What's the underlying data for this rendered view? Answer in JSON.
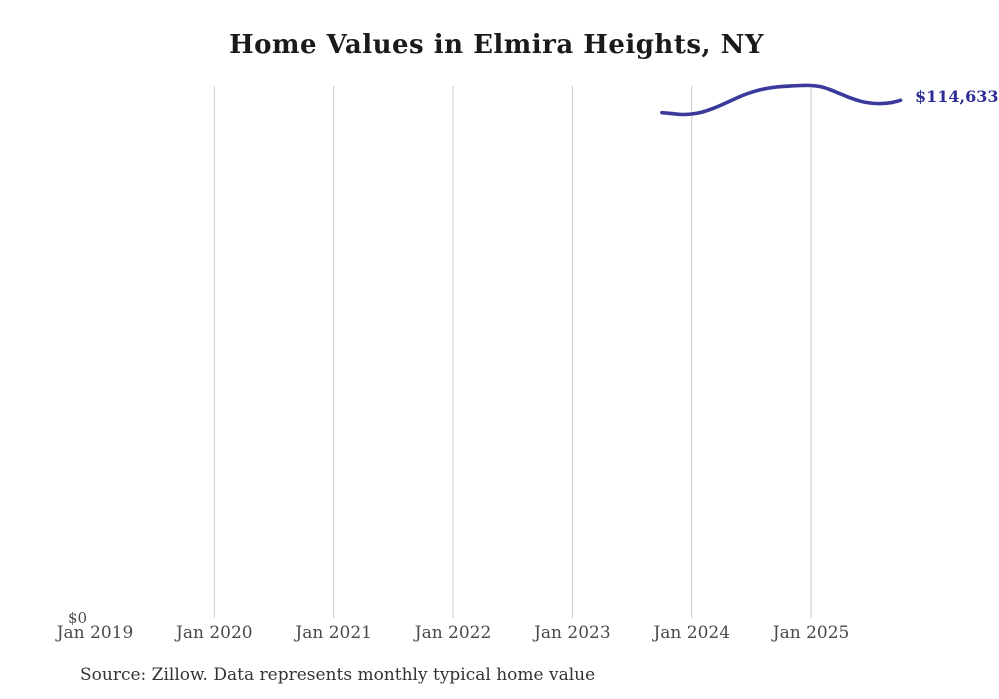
{
  "page": {
    "title": "Home Values in Elmira Heights, NY",
    "zero_label": "$0",
    "end_value_label": "$114,633",
    "source_note": "Source: Zillow. Data represents monthly typical home value"
  },
  "colors": {
    "line": "#3a3a9c",
    "end_label": "#2e2e96",
    "gridline": "#c9c9c9",
    "axis_text": "#4a4a4a",
    "title_text": "#1a1a1a",
    "source_text": "#333333"
  },
  "chart_data": {
    "type": "line",
    "title": "Home Values in Elmira Heights, NY",
    "xlabel": "",
    "ylabel": "",
    "x_ticks": [
      "Jan 2019",
      "Jan 2020",
      "Jan 2021",
      "Jan 2022",
      "Jan 2023",
      "Jan 2024",
      "Jan 2025"
    ],
    "gridlines": "vertical-at-yearly-ticks-except-first",
    "ylim": [
      0,
      118000
    ],
    "y_zero_label": "$0",
    "end_label": "$114,633",
    "legend": "none",
    "source": "Source: Zillow. Data represents monthly typical home value",
    "series": [
      {
        "name": "Monthly typical home value",
        "months": [
          "Oct 2023",
          "Nov 2023",
          "Dec 2023",
          "Jan 2024",
          "Feb 2024",
          "Mar 2024",
          "Apr 2024",
          "May 2024",
          "Jun 2024",
          "Jul 2024",
          "Aug 2024",
          "Sep 2024",
          "Oct 2024",
          "Nov 2024",
          "Dec 2024",
          "Jan 2025",
          "Feb 2025",
          "Mar 2025",
          "Apr 2025",
          "May 2025",
          "Jun 2025",
          "Jul 2025",
          "Aug 2025",
          "Sep 2025",
          "Oct 2025"
        ],
        "values": [
          111900,
          111700,
          111500,
          111600,
          112000,
          112700,
          113600,
          114600,
          115600,
          116400,
          117000,
          117400,
          117650,
          117800,
          117880,
          117900,
          117600,
          116900,
          116000,
          115100,
          114400,
          114000,
          113900,
          114100,
          114633
        ]
      }
    ]
  }
}
